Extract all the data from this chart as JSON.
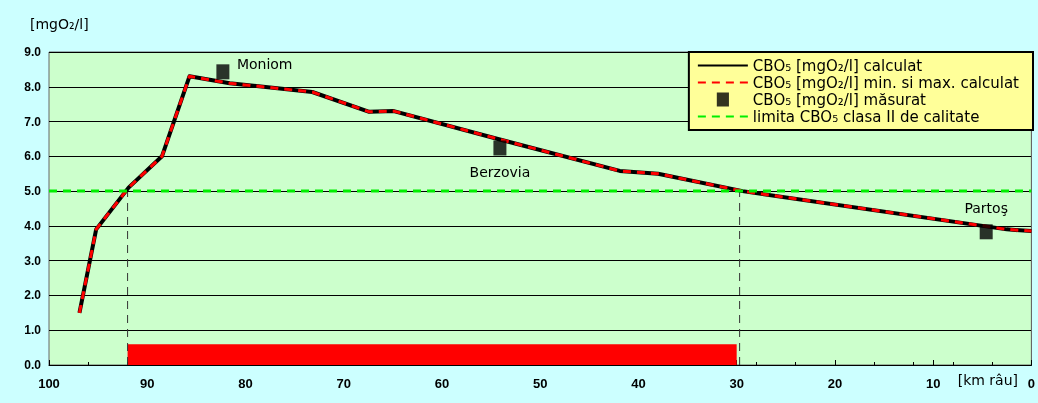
{
  "chart_data": {
    "type": "line",
    "xlabel": "[km râu]",
    "ylabel": "[mgO₂/l]",
    "xlim": [
      100,
      0
    ],
    "xticks": [
      100,
      90,
      80,
      70,
      60,
      50,
      40,
      30,
      20,
      10,
      0
    ],
    "ylim": [
      0,
      9
    ],
    "yticks": [
      {
        "value": 0,
        "label": "0.0"
      },
      {
        "value": 1,
        "label": "1.0"
      },
      {
        "value": 2,
        "label": "2.0"
      },
      {
        "value": 3,
        "label": "3.0"
      },
      {
        "value": 4,
        "label": "4.0"
      },
      {
        "value": 5,
        "label": "5.0"
      },
      {
        "value": 6,
        "label": "6.0"
      },
      {
        "value": 7,
        "label": "7.0"
      },
      {
        "value": 8,
        "label": "8.0"
      },
      {
        "value": 9,
        "label": "9.0"
      }
    ],
    "grid": "y",
    "legend": "top right",
    "series": [
      {
        "type": "area",
        "color": "#ff0000",
        "x": [
          92,
          30
        ],
        "values": [
          0.6,
          0.6
        ]
      },
      {
        "color": "#333333",
        "line_style": "dashed",
        "x": [
          92,
          92
        ],
        "values": [
          0,
          5
        ]
      },
      {
        "color": "#333333",
        "line_style": "dashed",
        "x": [
          29.7,
          29.7
        ],
        "values": [
          0,
          5
        ]
      },
      {
        "name": "CBO₅ [mgO₂/l] calculat",
        "color": "#000000",
        "line_style": "solid",
        "x": [
          96.9,
          95.2,
          91.9,
          88.5,
          85.7,
          81.6,
          73.2,
          67.4,
          64.9,
          54.3,
          41.9,
          38,
          29.4,
          2.5,
          0
        ],
        "values": [
          1.5,
          3.9,
          5.1,
          6.0,
          8.3,
          8.1,
          7.85,
          7.28,
          7.3,
          6.5,
          5.58,
          5.5,
          5.0,
          3.9,
          3.85
        ]
      },
      {
        "name": "CBO₅ [mgO₂/l] min. si max. calculat",
        "color": "#ff0000",
        "line_style": "dashed",
        "x": [
          96.9,
          95.2,
          91.9,
          88.5,
          85.7,
          81.6,
          73.2,
          67.4,
          64.9,
          54.3,
          41.9,
          38,
          29.4,
          2.5,
          0
        ],
        "values": [
          1.5,
          3.9,
          5.1,
          6.0,
          8.3,
          8.1,
          7.85,
          7.28,
          7.3,
          6.5,
          5.58,
          5.5,
          5.0,
          3.9,
          3.85
        ]
      },
      {
        "name": "CBO₅ [mgO₂/l] măsurat",
        "type": "scatter",
        "marker": "square",
        "color": "#000000",
        "x": [
          82.3,
          54.1,
          4.6
        ],
        "values": [
          8.43,
          6.24,
          3.83
        ]
      },
      {
        "name": "limita CBO₅ clasa II de calitate",
        "color": "#00ee00",
        "line_style": "dashed",
        "x": [
          100,
          0
        ],
        "values": [
          5,
          5
        ]
      }
    ],
    "annotations": [
      {
        "text": "Moniom",
        "x": 82.3,
        "y": 8.43
      },
      {
        "text": "Berzovia",
        "x": 54.1,
        "y": 6.24
      },
      {
        "text": "Partoş",
        "x": 4.6,
        "y": 3.83
      }
    ]
  }
}
